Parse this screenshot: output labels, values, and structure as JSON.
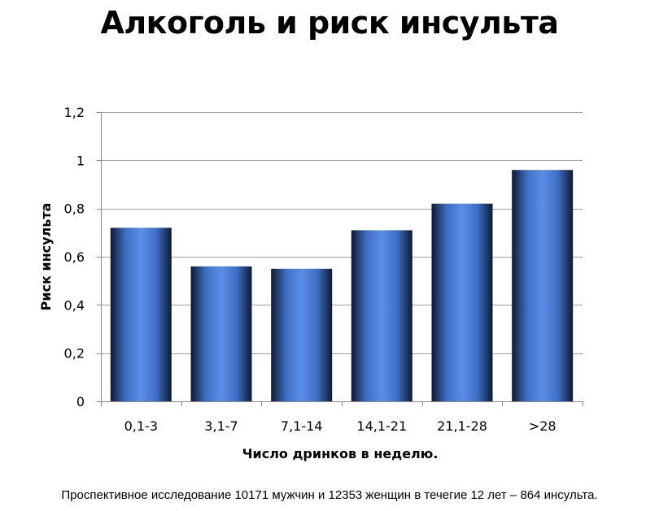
{
  "slide": {
    "title": "Алкоголь и риск инсульта",
    "footnote": "Проспективное исследование 10171 мужчин и 12353 женщин в течегие 12 лет – 864 инсульта."
  },
  "chart_data": {
    "type": "bar",
    "categories": [
      "0,1-3",
      "3,1-7",
      "7,1-14",
      "14,1-21",
      "21,1-28",
      ">28"
    ],
    "values": [
      0.72,
      0.56,
      0.55,
      0.71,
      0.82,
      0.96
    ],
    "xlabel": "Число дринков в неделю.",
    "ylabel": "Риск инсульта",
    "ylim": [
      0,
      1.2
    ],
    "yticks": [
      0,
      0.2,
      0.4,
      0.6,
      0.8,
      1,
      1.2
    ],
    "ytick_labels": [
      "0",
      "0,2",
      "0,4",
      "0,6",
      "0,8",
      "1",
      "1,2"
    ],
    "grid": true,
    "legend": "none",
    "colors": {
      "bar_dark": "#0d1a33",
      "bar_mid": "#3f6fc4",
      "bar_light": "#5a8ee6",
      "grid": "#a0a0a0",
      "axis": "#8c8c8c"
    }
  }
}
